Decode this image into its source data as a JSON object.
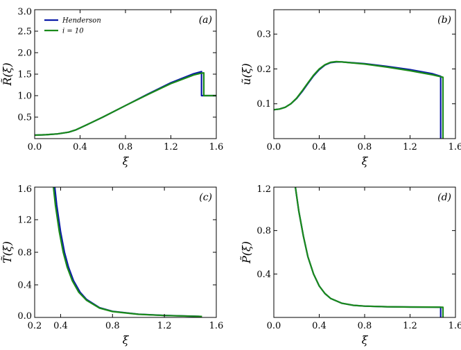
{
  "chart_data": [
    {
      "panel": "(a)",
      "type": "line",
      "xlabel": "ξ",
      "ylabel": "R̃(ξ)",
      "xlim": [
        0.0,
        1.6
      ],
      "ylim": [
        0.0,
        3.0
      ],
      "xticks": [
        0.0,
        0.4,
        0.8,
        1.2,
        1.6
      ],
      "xtick_labels": [
        "0.0",
        "0.4",
        "0.8",
        "1.2",
        "1.6"
      ],
      "yticks": [
        0.5,
        1.0,
        1.5,
        2.0,
        2.5,
        3.0
      ],
      "ytick_labels": [
        "0.5",
        "1.0",
        "1.5",
        "2.0",
        "2.5",
        "3.0"
      ],
      "legend": "top-left",
      "grid": false,
      "series": [
        {
          "name": "Henderson",
          "color": "#0a1aa8",
          "x": [
            0,
            0.1,
            0.2,
            0.3,
            0.36,
            0.45,
            0.6,
            0.8,
            1.0,
            1.2,
            1.4,
            1.47,
            1.47,
            1.6
          ],
          "y": [
            0.08,
            0.09,
            0.11,
            0.15,
            0.2,
            0.31,
            0.5,
            0.77,
            1.04,
            1.3,
            1.51,
            1.56,
            1.0,
            1.0
          ]
        },
        {
          "name": "i = 10",
          "color": "#1a8a1a",
          "x": [
            0,
            0.1,
            0.2,
            0.3,
            0.36,
            0.45,
            0.6,
            0.8,
            1.0,
            1.2,
            1.4,
            1.46,
            1.49,
            1.49,
            1.6
          ],
          "y": [
            0.08,
            0.09,
            0.11,
            0.15,
            0.2,
            0.31,
            0.5,
            0.77,
            1.03,
            1.28,
            1.48,
            1.52,
            1.53,
            1.0,
            1.0
          ]
        }
      ]
    },
    {
      "panel": "(b)",
      "type": "line",
      "xlabel": "ξ",
      "ylabel": "ũ(ξ)",
      "xlim": [
        0.0,
        1.6
      ],
      "ylim": [
        0.0,
        0.37
      ],
      "xticks": [
        0.0,
        0.4,
        0.8,
        1.2,
        1.6
      ],
      "xtick_labels": [
        "0.0",
        "0.4",
        "0.8",
        "1.2",
        "1.6"
      ],
      "yticks": [
        0.1,
        0.2,
        0.3
      ],
      "ytick_labels": [
        "0.1",
        "0.2",
        "0.3"
      ],
      "grid": false,
      "series": [
        {
          "name": "Henderson",
          "color": "#0a1aa8",
          "x": [
            0,
            0.05,
            0.1,
            0.15,
            0.2,
            0.25,
            0.3,
            0.35,
            0.4,
            0.45,
            0.5,
            0.55,
            0.6,
            0.8,
            1.0,
            1.2,
            1.4,
            1.47,
            1.47
          ],
          "y": [
            0.083,
            0.085,
            0.09,
            0.1,
            0.115,
            0.135,
            0.158,
            0.18,
            0.198,
            0.211,
            0.218,
            0.22,
            0.22,
            0.215,
            0.207,
            0.198,
            0.186,
            0.179,
            0.0
          ]
        },
        {
          "name": "i = 10",
          "color": "#1a8a1a",
          "x": [
            0,
            0.05,
            0.1,
            0.15,
            0.2,
            0.25,
            0.3,
            0.35,
            0.4,
            0.45,
            0.5,
            0.55,
            0.6,
            0.8,
            1.0,
            1.2,
            1.4,
            1.49,
            1.49
          ],
          "y": [
            0.083,
            0.085,
            0.09,
            0.1,
            0.116,
            0.137,
            0.16,
            0.182,
            0.2,
            0.212,
            0.219,
            0.221,
            0.22,
            0.214,
            0.205,
            0.195,
            0.183,
            0.176,
            0.0
          ]
        }
      ]
    },
    {
      "panel": "(c)",
      "type": "line",
      "xlabel": "ξ",
      "ylabel": "T̃(ξ)",
      "xlim": [
        0.2,
        1.6
      ],
      "ylim": [
        0.0,
        1.6
      ],
      "xticks": [
        0.2,
        0.4,
        0.8,
        1.2,
        1.6
      ],
      "xtick_labels": [
        "0.2",
        "0.4",
        "0.8",
        "1.2",
        "1.6"
      ],
      "yticks": [
        0.0,
        0.4,
        0.8,
        1.2,
        1.6
      ],
      "ytick_labels": [
        "0.0",
        "0.4",
        "0.8",
        "1.2",
        "1.6"
      ],
      "grid": false,
      "series": [
        {
          "name": "Henderson",
          "color": "#0a1aa8",
          "x": [
            0.355,
            0.37,
            0.4,
            0.43,
            0.46,
            0.5,
            0.55,
            0.6,
            0.7,
            0.8,
            1.0,
            1.2,
            1.4,
            1.47
          ],
          "y": [
            1.6,
            1.38,
            1.05,
            0.8,
            0.62,
            0.45,
            0.31,
            0.22,
            0.12,
            0.075,
            0.04,
            0.025,
            0.016,
            0.013
          ]
        },
        {
          "name": "i = 10",
          "color": "#1a8a1a",
          "x": [
            0.345,
            0.36,
            0.39,
            0.42,
            0.45,
            0.49,
            0.54,
            0.6,
            0.7,
            0.8,
            1.0,
            1.2,
            1.4,
            1.49
          ],
          "y": [
            1.6,
            1.38,
            1.05,
            0.8,
            0.62,
            0.45,
            0.31,
            0.21,
            0.115,
            0.072,
            0.038,
            0.024,
            0.015,
            0.012
          ]
        }
      ]
    },
    {
      "panel": "(d)",
      "type": "line",
      "xlabel": "ξ",
      "ylabel": "P̃(ξ)",
      "xlim": [
        0.0,
        1.6
      ],
      "ylim": [
        0.0,
        1.2
      ],
      "xticks": [
        0.0,
        0.4,
        0.8,
        1.2,
        1.6
      ],
      "xtick_labels": [
        "0.0",
        "0.4",
        "0.8",
        "1.2",
        "1.6"
      ],
      "yticks": [
        0.4,
        0.8,
        1.2
      ],
      "ytick_labels": [
        "0.4",
        "0.8",
        "1.2"
      ],
      "grid": false,
      "series": [
        {
          "name": "Henderson",
          "color": "#0a1aa8",
          "x": [
            0.19,
            0.22,
            0.26,
            0.3,
            0.35,
            0.4,
            0.45,
            0.5,
            0.6,
            0.7,
            0.8,
            1.0,
            1.2,
            1.4,
            1.47,
            1.47
          ],
          "y": [
            1.2,
            0.98,
            0.75,
            0.56,
            0.4,
            0.29,
            0.22,
            0.175,
            0.13,
            0.112,
            0.104,
            0.098,
            0.096,
            0.095,
            0.094,
            0.0
          ]
        },
        {
          "name": "i = 10",
          "color": "#1a8a1a",
          "x": [
            0.19,
            0.22,
            0.26,
            0.3,
            0.35,
            0.4,
            0.45,
            0.5,
            0.6,
            0.7,
            0.8,
            1.0,
            1.2,
            1.4,
            1.49,
            1.49
          ],
          "y": [
            1.2,
            0.98,
            0.75,
            0.56,
            0.4,
            0.29,
            0.22,
            0.175,
            0.13,
            0.112,
            0.104,
            0.098,
            0.096,
            0.095,
            0.094,
            0.0
          ]
        }
      ]
    }
  ],
  "legend": {
    "items": [
      {
        "label": "Henderson",
        "color": "#0a1aa8"
      },
      {
        "label": "i = 10",
        "color": "#1a8a1a"
      }
    ]
  }
}
